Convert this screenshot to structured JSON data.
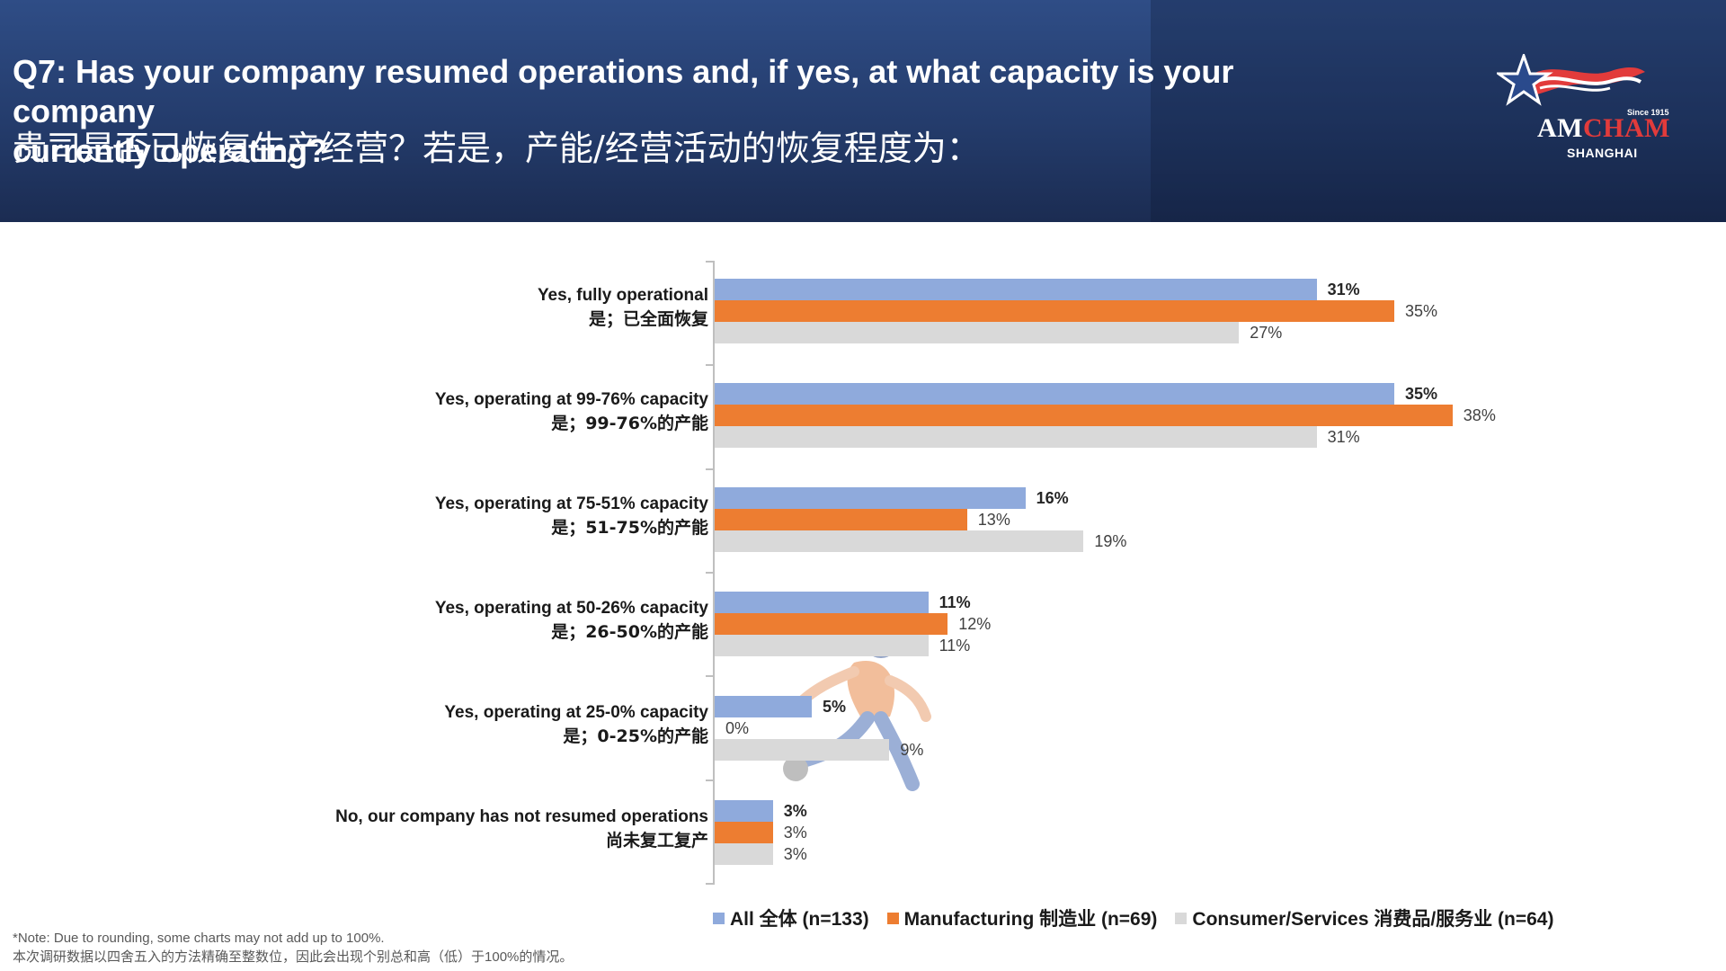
{
  "header": {
    "title_en_line1": "Q7: Has your company resumed operations and, if yes, at what capacity is your company",
    "title_en_line2": "currently operating?",
    "title_zh": "贵司是否已恢复生产经营？若是，产能/经营活动的恢复程度为："
  },
  "logo": {
    "since": "Since 1915",
    "am": "AM",
    "cham": "CHAM",
    "city": "SHANGHAI"
  },
  "chart_data": {
    "type": "bar",
    "orientation": "horizontal",
    "categories": [
      {
        "en": "Yes, fully operational",
        "zh": "是；已全面恢复"
      },
      {
        "en": "Yes, operating at 99-76% capacity",
        "zh": "是；99-76%的产能"
      },
      {
        "en": "Yes, operating at 75-51% capacity",
        "zh": "是；51-75%的产能"
      },
      {
        "en": "Yes, operating at 50-26% capacity",
        "zh": "是；26-50%的产能"
      },
      {
        "en": "Yes, operating at 25-0% capacity",
        "zh": "是；0-25%的产能"
      },
      {
        "en": "No, our company has not resumed operations",
        "zh": "尚未复工复产"
      }
    ],
    "series": [
      {
        "name": "All 全体 (n=133)",
        "values": [
          31,
          35,
          16,
          11,
          5,
          3
        ],
        "labels": [
          "31%",
          "35%",
          "16%",
          "11%",
          "5%",
          "3%"
        ],
        "color": "#8faadc"
      },
      {
        "name": "Manufacturing 制造业 (n=69)",
        "values": [
          35,
          38,
          13,
          12,
          0,
          3
        ],
        "labels": [
          "35%",
          "38%",
          "13%",
          "12%",
          "0%",
          "3%"
        ],
        "color": "#ed7d31"
      },
      {
        "name": "Consumer/Services 消费品/服务业 (n=64)",
        "values": [
          27,
          31,
          19,
          11,
          9,
          3
        ],
        "labels": [
          "27%",
          "31%",
          "19%",
          "11%",
          "9%",
          "3%"
        ],
        "color": "#d9d9d9"
      }
    ],
    "xlim": [
      0,
      40
    ],
    "legend_position": "bottom"
  },
  "notes": {
    "en": "*Note: Due to rounding, some charts may not add up to 100%.",
    "zh": "本次调研数据以四舍五入的方法精确至整数位，因此会出现个别总和高（低）于100%的情况。"
  }
}
